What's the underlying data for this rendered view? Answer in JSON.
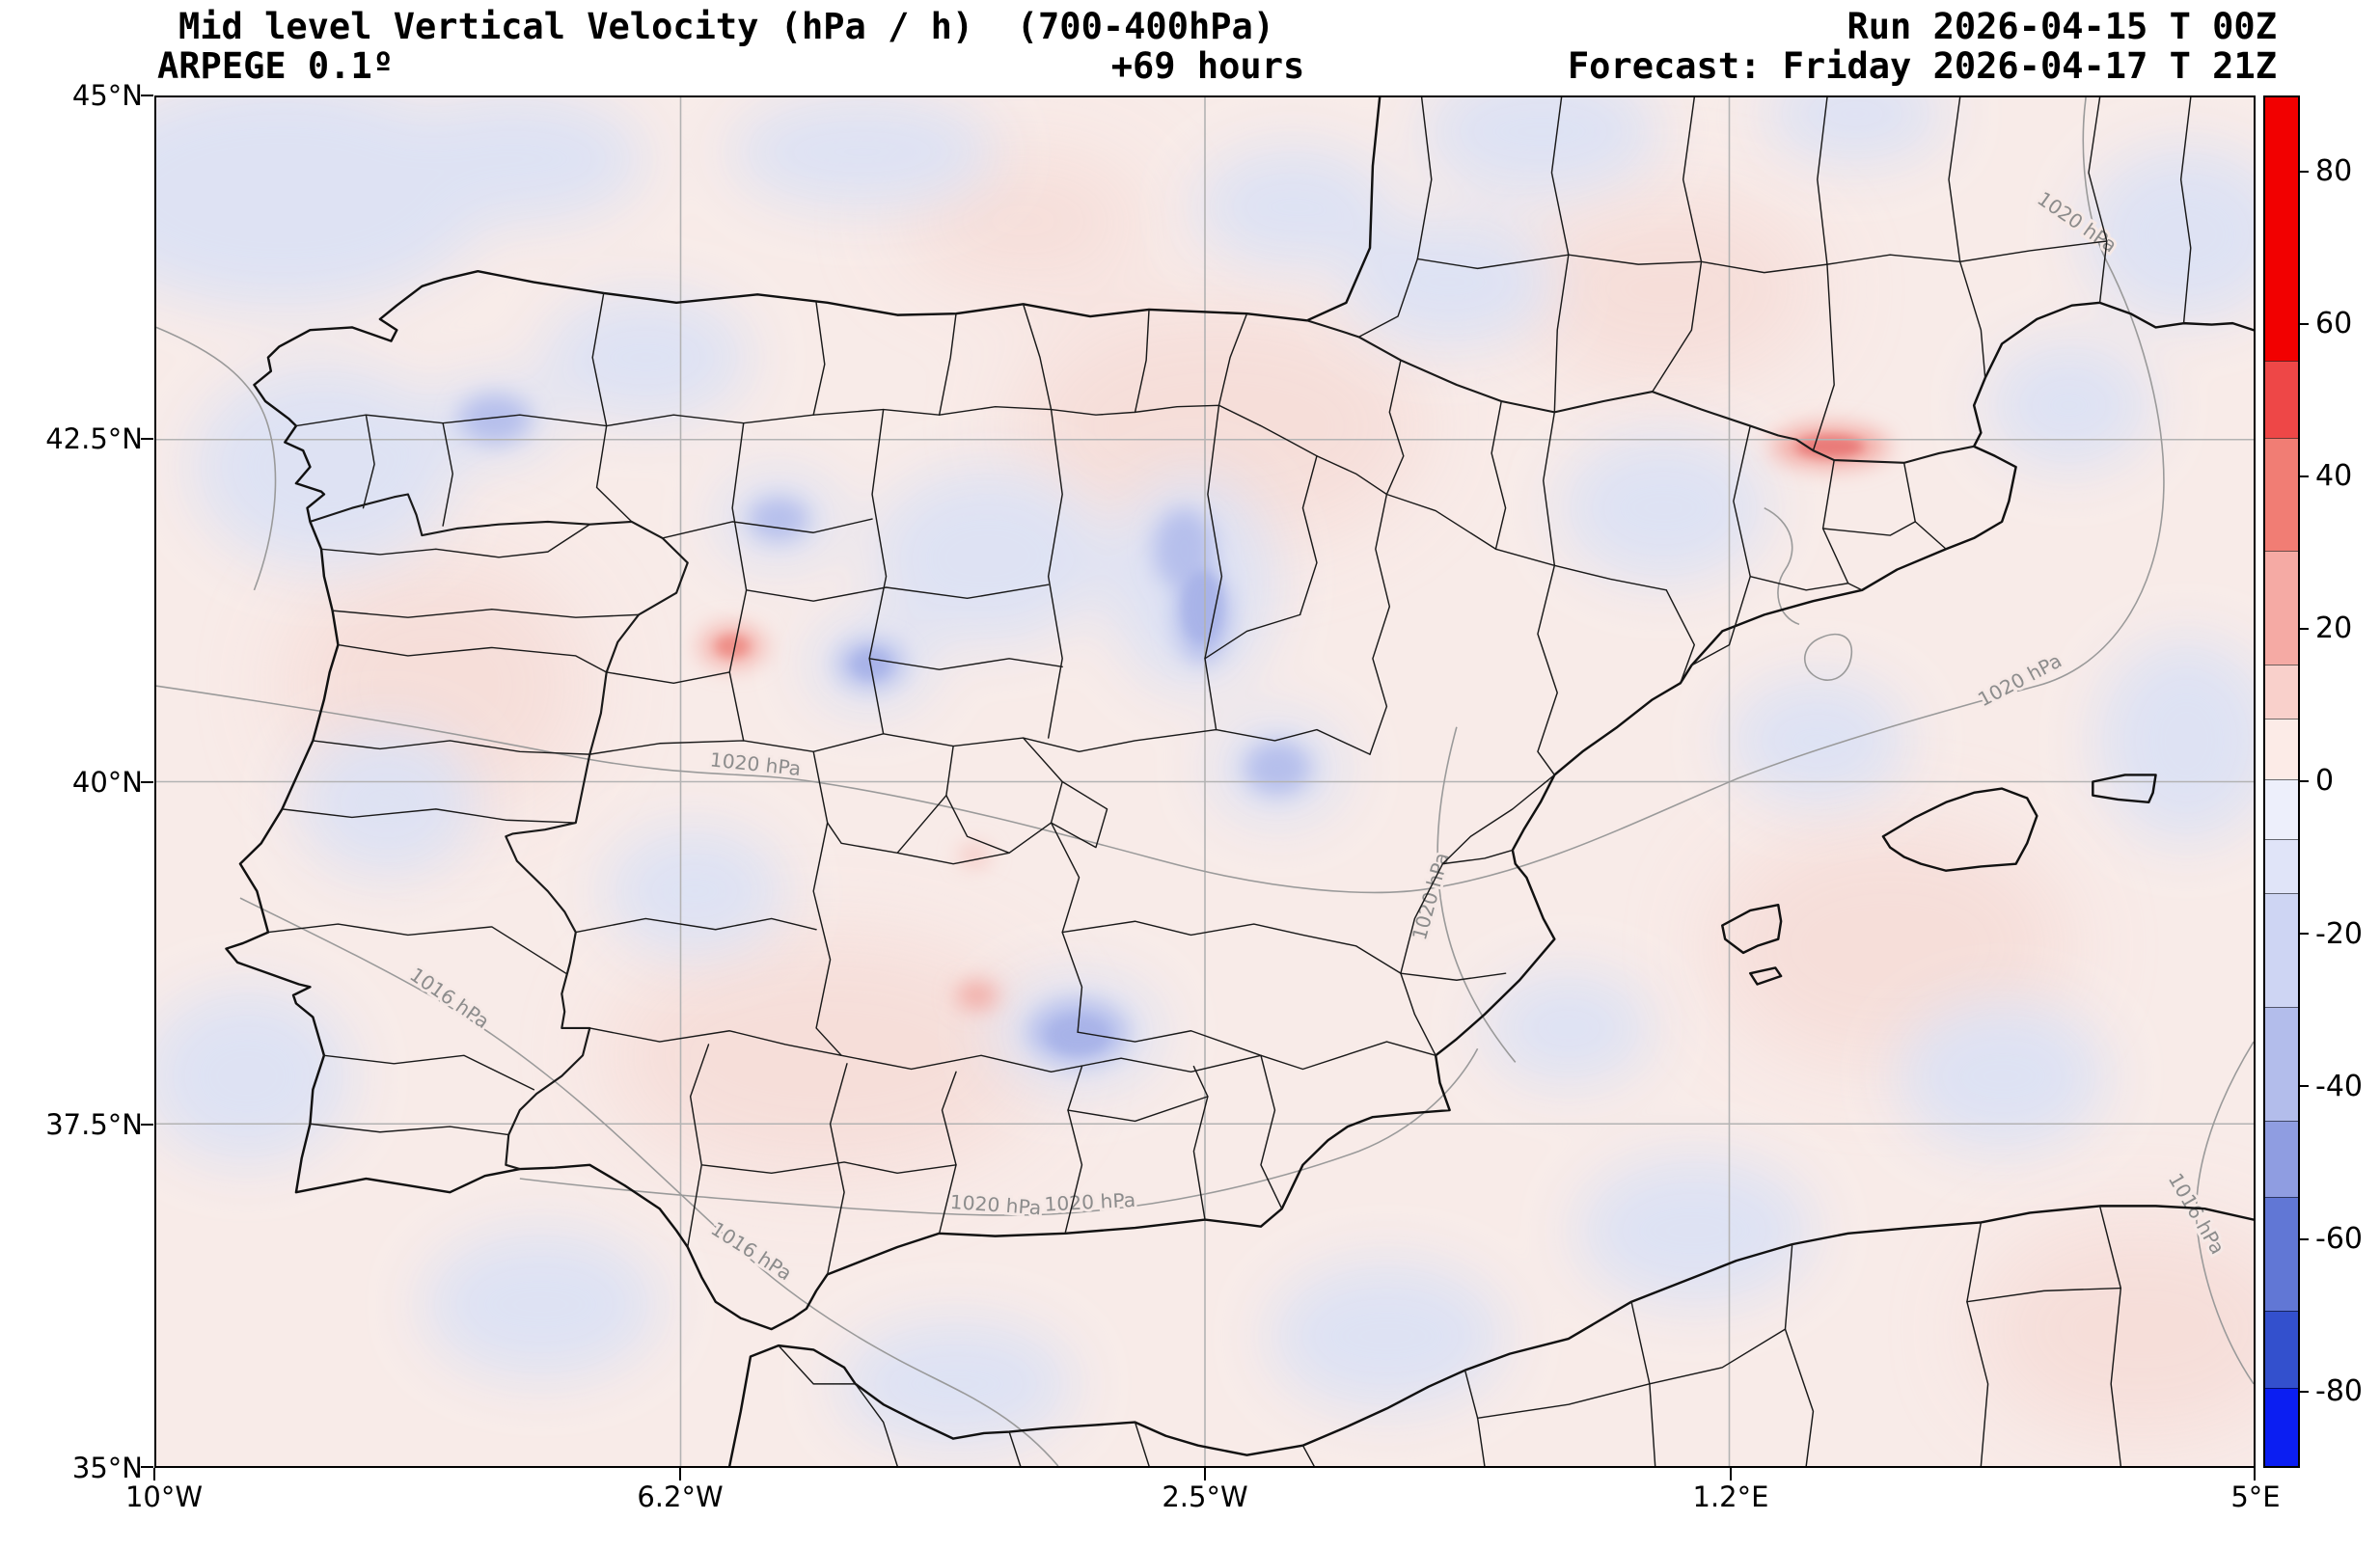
{
  "header": {
    "title": "Mid level Vertical Velocity (hPa / h)  (700-400hPa)",
    "model": "ARPEGE 0.1º",
    "lead": "+69 hours",
    "run": "Run 2026-04-15 T 00Z",
    "forecast": "Forecast: Friday 2026-04-17 T 21Z"
  },
  "axes": {
    "x_ticks": [
      "10°W",
      "6.2°W",
      "2.5°W",
      "1.2°E",
      "5°E"
    ],
    "y_ticks": [
      "45°N",
      "42.5°N",
      "40°N",
      "37.5°N",
      "35°N"
    ],
    "lon_range": [
      -10,
      5
    ],
    "lat_range": [
      35,
      45
    ]
  },
  "colorbar": {
    "ticks": [
      "80",
      "60",
      "40",
      "20",
      "0",
      "-20",
      "-40",
      "-60",
      "-80"
    ],
    "tick_values": [
      80,
      60,
      40,
      20,
      0,
      -20,
      -40,
      -60,
      -80
    ],
    "range": [
      -90,
      90
    ],
    "segments": [
      {
        "color": "#f20000",
        "span": 0.194
      },
      {
        "color": "#ee4747",
        "span": 0.056
      },
      {
        "color": "#f17d74",
        "span": 0.083
      },
      {
        "color": "#f5aaa4",
        "span": 0.083
      },
      {
        "color": "#f9d0cb",
        "span": 0.039
      },
      {
        "color": "#fcebe7",
        "span": 0.044
      },
      {
        "color": "#edeffb",
        "span": 0.044
      },
      {
        "color": "#e0e4f8",
        "span": 0.039
      },
      {
        "color": "#ced5f3",
        "span": 0.083
      },
      {
        "color": "#b3bdeb",
        "span": 0.083
      },
      {
        "color": "#8f9de1",
        "span": 0.056
      },
      {
        "color": "#6177d5",
        "span": 0.083
      },
      {
        "color": "#3350cd",
        "span": 0.056
      },
      {
        "color": "#0b1ef2",
        "span": 0.057
      }
    ]
  },
  "map": {
    "contour_labels": [
      {
        "text": "1020 hPa"
      },
      {
        "text": "1020 hPa"
      },
      {
        "text": "1020 hPa"
      },
      {
        "text": "1020 hPa"
      },
      {
        "text": "1016 hPa"
      },
      {
        "text": "1016 hPa"
      },
      {
        "text": "1020 hPa"
      },
      {
        "text": "1020 hPa"
      },
      {
        "text": "1016 hPa"
      }
    ]
  }
}
